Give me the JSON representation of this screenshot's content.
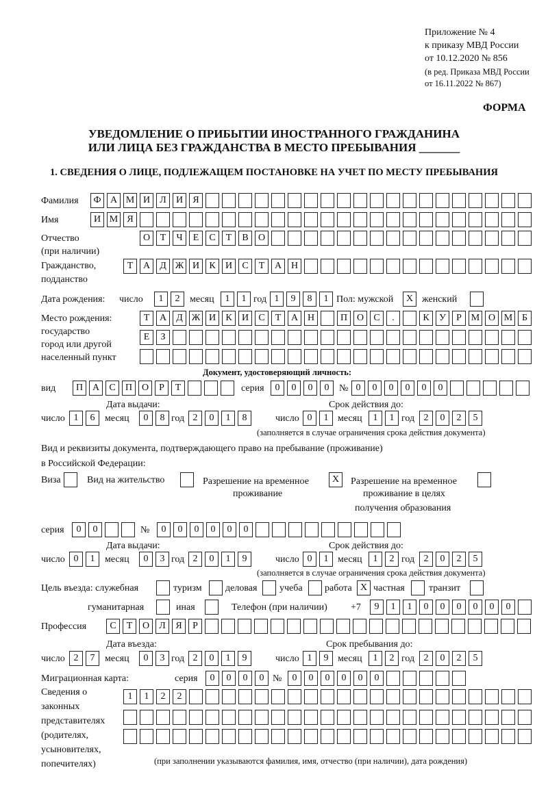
{
  "header": {
    "appendix": "Приложение № 4",
    "order": "к приказу МВД России",
    "order_date": "от 10.12.2020 № 856",
    "amendment1": "(в ред. Приказа МВД России",
    "amendment2": "от 16.11.2022 № 867)",
    "form_label": "ФОРМА",
    "title1": "УВЕДОМЛЕНИЕ О ПРИБЫТИИ ИНОСТРАННОГО ГРАЖДАНИНА",
    "title2": "ИЛИ ЛИЦА БЕЗ ГРАЖДАНСТВА В МЕСТО ПРЕБЫВАНИЯ _______",
    "section1": "1. СВЕДЕНИЯ О ЛИЦЕ, ПОДЛЕЖАЩЕМ ПОСТАНОВКЕ НА УЧЕТ ПО МЕСТУ ПРЕБЫВАНИЯ"
  },
  "labels": {
    "surname": "Фамилия",
    "name": "Имя",
    "patronymic": "Отчество",
    "patronymic2": "(при наличии)",
    "citizenship": "Гражданство,",
    "citizenship2": "подданство",
    "birth_date": "Дата рождения:",
    "day": "число",
    "month": "месяц",
    "year": "год",
    "sex": "Пол: мужской",
    "female": "женский",
    "birthplace1": "Место рождения:",
    "birthplace2": "государство",
    "birthplace3": "город или другой",
    "birthplace4": "населенный пункт",
    "id_doc": "Документ, удостоверяющий личность:",
    "kind": "вид",
    "series": "серия",
    "number": "№",
    "issue_date": "Дата выдачи:",
    "valid_until": "Срок действия до:",
    "valid_note": "(заполняется в случае ограничения срока действия документа)",
    "stay_doc1": "Вид и реквизиты документа, подтверждающего право на пребывание (проживание)",
    "stay_doc2": "в Российской Федерации:",
    "visa": "Виза",
    "residence": "Вид на жительство",
    "temp1": "Разрешение на временное",
    "temp2": "проживание",
    "edu1": "Разрешение на временное",
    "edu2": "проживание в целях",
    "edu3": "получения образования",
    "purpose": "Цель въезда: служебная",
    "tourism": "туризм",
    "business": "деловая",
    "study": "учеба",
    "work": "работа",
    "private": "частная",
    "transit": "транзит",
    "humanitarian": "гуманитарная",
    "other": "иная",
    "phone": "Телефон (при наличии)",
    "phone_code": "+7",
    "profession": "Профессия",
    "entry_date": "Дата въезда:",
    "stay_until": "Срок пребывания до:",
    "migration_card": "Миграционная карта:",
    "reps1": "Сведения о",
    "reps2": "законных",
    "reps3": "представителях",
    "reps4": "(родителях,",
    "reps5": "усыновителях,",
    "reps6": "попечителях)",
    "reps_note": "(при заполнении указываются фамилия, имя, отчество (при наличии), дата рождения)"
  },
  "fields": {
    "surname": "ФАМИЛИЯ",
    "name": "ИМЯ",
    "patronymic": "ОТЧЕСТВО",
    "citizenship": "ТАДЖИКИСТАН",
    "birth_day": "12",
    "birth_month": "11",
    "birth_year": "1981",
    "sex_male": "X",
    "sex_female": "",
    "birthplace_line1": "ТАДЖИКИСТАН ПОС. КУРМОМБ",
    "birthplace_line2": "ЕЗ",
    "birthplace_line3": "",
    "id_kind": "ПАСПОРТ",
    "id_series": "0000",
    "id_number": "000000",
    "id_issue_day": "16",
    "id_issue_month": "08",
    "id_issue_year": "2018",
    "id_valid_day": "01",
    "id_valid_month": "11",
    "id_valid_year": "2025",
    "visa": "",
    "residence_permit": "",
    "temp_residence": "X",
    "temp_residence_edu": "",
    "stay_series": "00",
    "stay_number": "000000",
    "stay_issue_day": "01",
    "stay_issue_month": "03",
    "stay_issue_year": "2019",
    "stay_valid_day": "01",
    "stay_valid_month": "12",
    "stay_valid_year": "2025",
    "purpose_official": "",
    "purpose_tourism": "",
    "purpose_business": "",
    "purpose_study": "",
    "purpose_work": "X",
    "purpose_private": "",
    "purpose_transit": "",
    "purpose_humanitarian": "",
    "purpose_other": "",
    "phone": "911000000",
    "profession": "СТОЛЯР",
    "entry_day": "27",
    "entry_month": "03",
    "entry_year": "2019",
    "stay_until_day": "19",
    "stay_until_month": "12",
    "stay_until_year": "2025",
    "mig_series": "0000",
    "mig_number": "000000",
    "reps_line1": "1122",
    "reps_line2": "",
    "reps_line3": ""
  }
}
